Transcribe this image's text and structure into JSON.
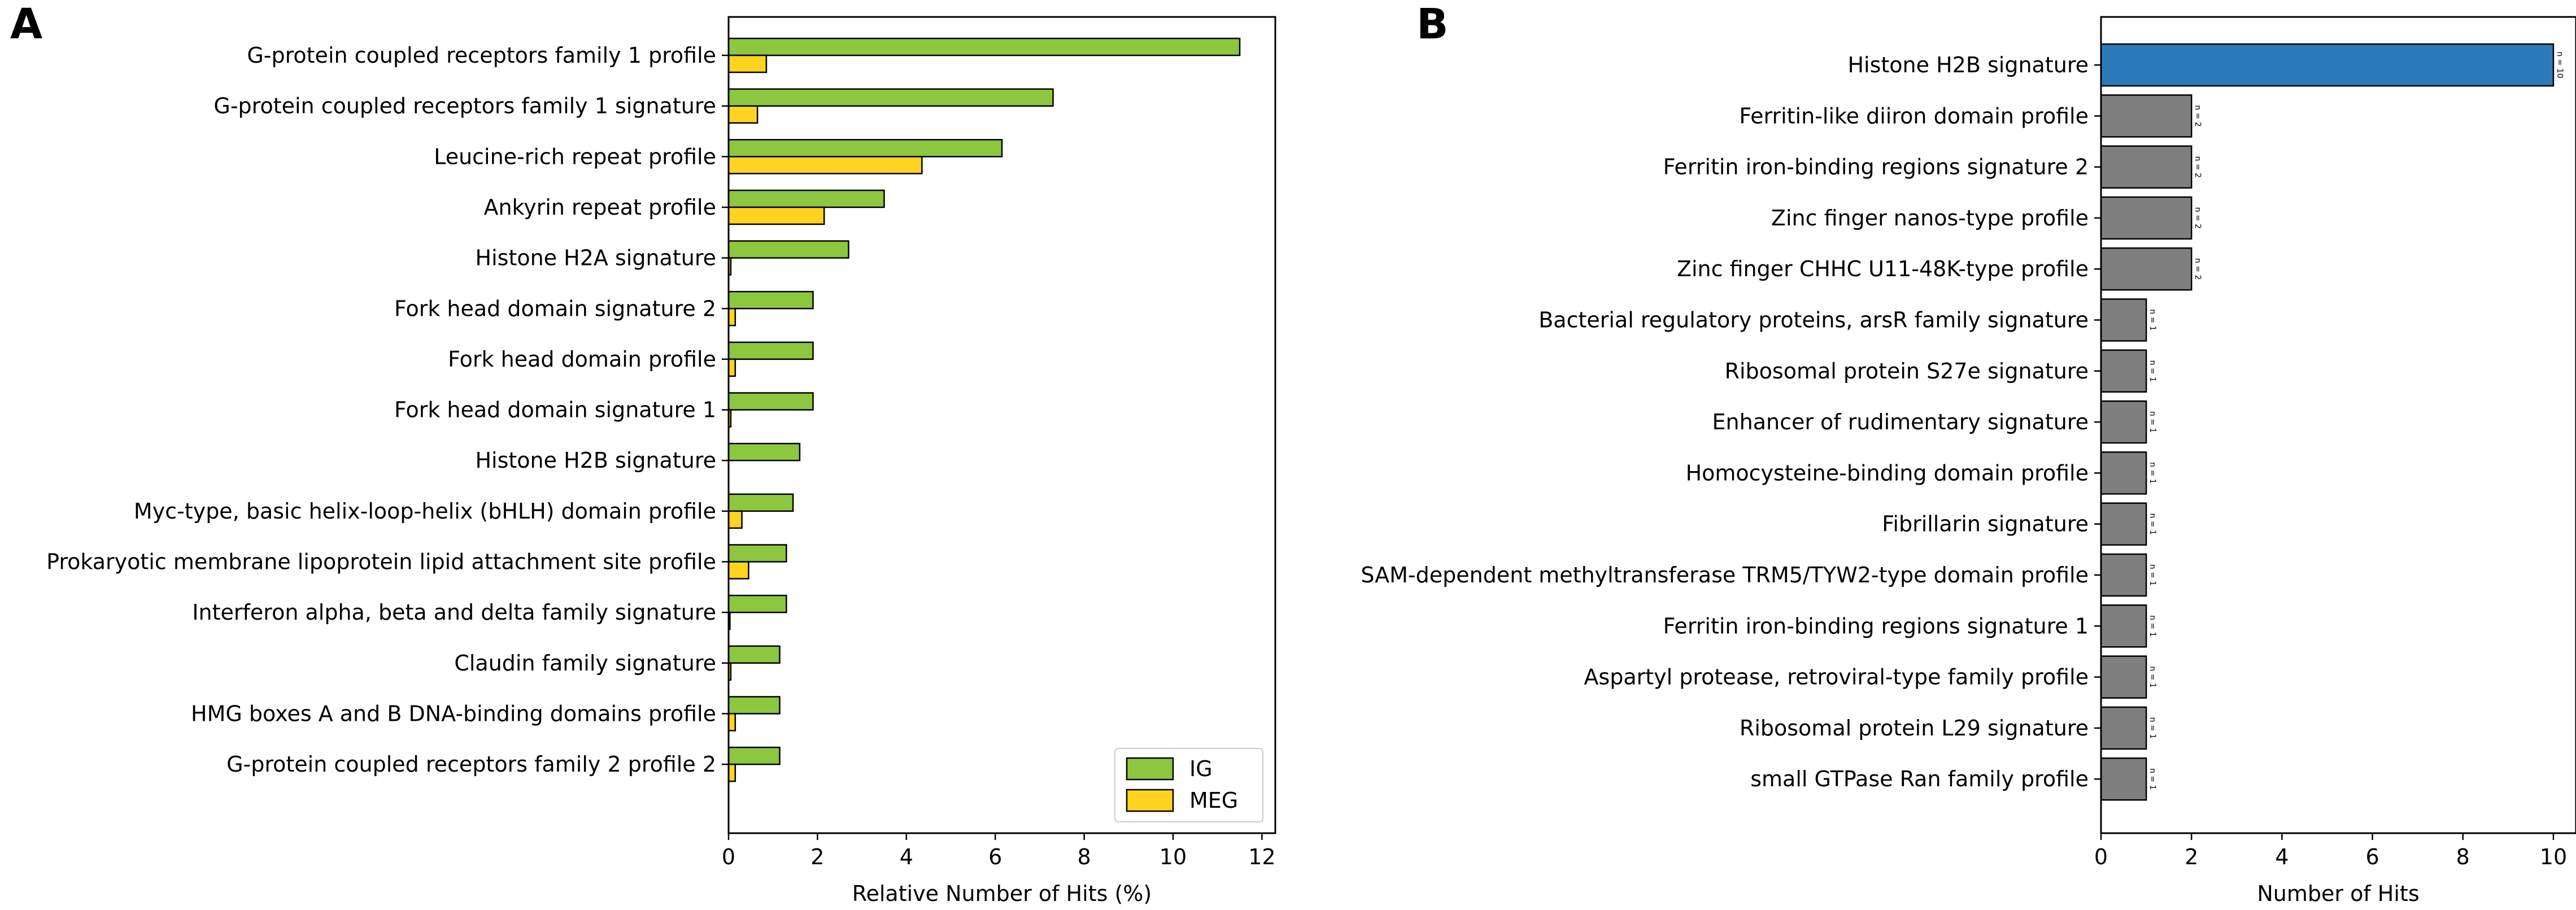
{
  "chart_data": [
    {
      "panel": "A",
      "type": "bar",
      "orientation": "horizontal",
      "categories": [
        "G-protein coupled receptors family 1 profile",
        "G-protein coupled receptors family 1 signature",
        "Leucine-rich repeat profile",
        "Ankyrin repeat profile",
        "Histone H2A signature",
        "Fork head domain signature 2",
        "Fork head domain profile",
        "Fork head domain signature 1",
        "Histone H2B signature",
        "Myc-type, basic helix-loop-helix (bHLH) domain profile",
        "Prokaryotic membrane lipoprotein lipid attachment site profile",
        "Interferon alpha, beta and delta family signature",
        "Claudin family signature",
        "HMG boxes A and B DNA-binding domains profile",
        "G-protein coupled receptors family 2 profile 2"
      ],
      "series": [
        {
          "name": "IG",
          "color": "#8dc63f",
          "values": [
            11.5,
            7.3,
            6.15,
            3.5,
            2.7,
            1.9,
            1.9,
            1.9,
            1.6,
            1.45,
            1.3,
            1.3,
            1.15,
            1.15,
            1.15
          ]
        },
        {
          "name": "MEG",
          "color": "#ffd320",
          "values": [
            0.85,
            0.65,
            4.35,
            2.15,
            0.05,
            0.15,
            0.15,
            0.05,
            0.0,
            0.3,
            0.45,
            0.03,
            0.05,
            0.15,
            0.15
          ]
        }
      ],
      "xlabel": "Relative Number of Hits (%)",
      "xlim": [
        0,
        12.3
      ],
      "xticks": [
        0,
        2,
        4,
        6,
        8,
        10,
        12
      ],
      "xtick_labels": [
        "0",
        "2",
        "4",
        "6",
        "8",
        "10",
        "12"
      ],
      "legend": {
        "position": "bottom-right",
        "entries": [
          "IG",
          "MEG"
        ]
      }
    },
    {
      "panel": "B",
      "type": "bar",
      "orientation": "horizontal",
      "categories": [
        "Histone H2B signature",
        "Ferritin-like diiron domain profile",
        "Ferritin iron-binding regions signature 2",
        "Zinc finger nanos-type profile",
        "Zinc finger CHHC U11-48K-type profile",
        "Bacterial regulatory proteins, arsR family signature",
        "Ribosomal protein S27e signature",
        "Enhancer of rudimentary signature",
        "Homocysteine-binding domain profile",
        "Fibrillarin signature",
        "SAM-dependent methyltransferase TRM5/TYW2-type domain profile",
        "Ferritin iron-binding regions signature 1",
        "Aspartyl protease, retroviral-type family profile",
        "Ribosomal protein L29 signature",
        "small GTPase Ran family profile"
      ],
      "values": [
        10,
        2,
        2,
        2,
        2,
        1,
        1,
        1,
        1,
        1,
        1,
        1,
        1,
        1,
        1
      ],
      "bar_labels": [
        "n = 10",
        "n = 2",
        "n = 2",
        "n = 2",
        "n = 2",
        "n = 1",
        "n = 1",
        "n = 1",
        "n = 1",
        "n = 1",
        "n = 1",
        "n = 1",
        "n = 1",
        "n = 1",
        "n = 1"
      ],
      "colors": {
        "highlight": "#2b7bba",
        "default": "#7f7f7f"
      },
      "highlight_index": 0,
      "xlabel": "Number of Hits",
      "xlim": [
        0,
        10.5
      ],
      "xticks": [
        0,
        2,
        4,
        6,
        8,
        10
      ],
      "xtick_labels": [
        "0",
        "2",
        "4",
        "6",
        "8",
        "10"
      ]
    }
  ]
}
